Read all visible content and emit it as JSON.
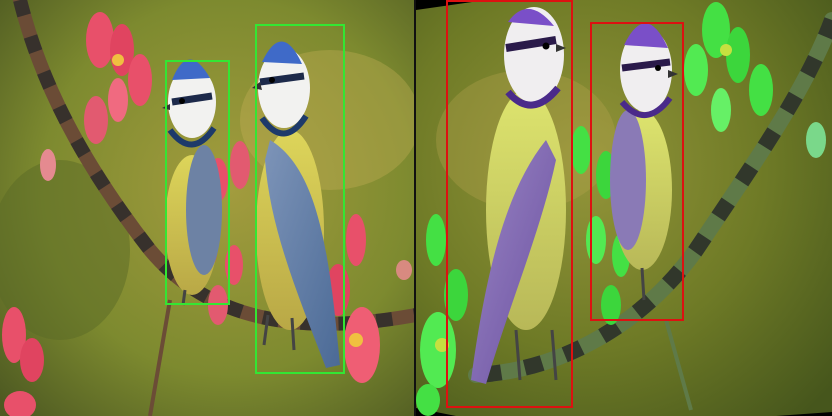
{
  "panels": [
    {
      "name": "original",
      "box_color": "#33e633",
      "box_count": 2
    },
    {
      "name": "augmented",
      "box_color": "#dd1111",
      "box_count": 2
    }
  ],
  "subjects": [
    "blue-tit",
    "blue-tit"
  ],
  "colors": {
    "left_background": "#8a8a2e",
    "right_background": "#6d7a24",
    "left_flowers": "#e8506a",
    "right_flowers": "#44e044"
  }
}
